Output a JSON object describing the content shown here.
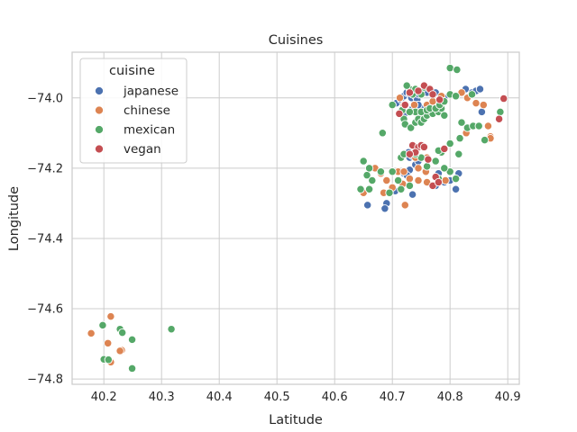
{
  "chart_data": {
    "type": "scatter",
    "title": "Cuisines",
    "xlabel": "Latitude",
    "ylabel": "Longitude",
    "xlim": [
      40.145,
      40.92
    ],
    "ylim": [
      -74.815,
      -73.87
    ],
    "xticks": [
      40.2,
      40.3,
      40.4,
      40.5,
      40.6,
      40.7,
      40.8,
      40.9
    ],
    "xtick_labels": [
      "40.2",
      "40.3",
      "40.4",
      "40.5",
      "40.6",
      "40.7",
      "40.8",
      "40.9"
    ],
    "yticks": [
      -74.0,
      -74.2,
      -74.4,
      -74.6,
      -74.8
    ],
    "ytick_labels": [
      "−74.0",
      "−74.2",
      "−74.4",
      "−74.6",
      "−74.8"
    ],
    "grid": true,
    "legend": {
      "title": "cuisine",
      "position": "top-left"
    },
    "series": [
      {
        "name": "japanese",
        "color": "#4c72b0",
        "points": [
          [
            40.707,
            -74.015
          ],
          [
            40.715,
            -74.005
          ],
          [
            40.72,
            -73.995
          ],
          [
            40.725,
            -73.985
          ],
          [
            40.73,
            -73.99
          ],
          [
            40.733,
            -74.0
          ],
          [
            40.736,
            -73.98
          ],
          [
            40.74,
            -73.995
          ],
          [
            40.743,
            -74.005
          ],
          [
            40.746,
            -73.99
          ],
          [
            40.75,
            -74.03
          ],
          [
            40.755,
            -73.975
          ],
          [
            40.76,
            -73.985
          ],
          [
            40.775,
            -73.985
          ],
          [
            40.79,
            -74.0
          ],
          [
            40.827,
            -73.975
          ],
          [
            40.838,
            -73.985
          ],
          [
            40.845,
            -73.98
          ],
          [
            40.852,
            -73.975
          ],
          [
            40.855,
            -74.04
          ],
          [
            40.72,
            -74.05
          ],
          [
            40.735,
            -74.03
          ],
          [
            40.745,
            -74.02
          ],
          [
            40.728,
            -74.155
          ],
          [
            40.73,
            -74.17
          ],
          [
            40.735,
            -74.165
          ],
          [
            40.74,
            -74.19
          ],
          [
            40.745,
            -74.18
          ],
          [
            40.73,
            -74.205
          ],
          [
            40.72,
            -74.215
          ],
          [
            40.725,
            -74.22
          ],
          [
            40.735,
            -74.275
          ],
          [
            40.705,
            -74.265
          ],
          [
            40.695,
            -74.27
          ],
          [
            40.69,
            -74.3
          ],
          [
            40.687,
            -74.315
          ],
          [
            40.657,
            -74.305
          ],
          [
            40.775,
            -74.25
          ],
          [
            40.8,
            -74.235
          ],
          [
            40.81,
            -74.26
          ],
          [
            40.815,
            -74.215
          ],
          [
            40.78,
            -74.215
          ],
          [
            40.79,
            -74.24
          ]
        ]
      },
      {
        "name": "chinese",
        "color": "#dd8452",
        "points": [
          [
            40.713,
            -74.0
          ],
          [
            40.72,
            -74.02
          ],
          [
            40.738,
            -74.02
          ],
          [
            40.745,
            -74.05
          ],
          [
            40.752,
            -74.04
          ],
          [
            40.76,
            -74.02
          ],
          [
            40.77,
            -74.01
          ],
          [
            40.785,
            -73.995
          ],
          [
            40.82,
            -73.985
          ],
          [
            40.83,
            -74.0
          ],
          [
            40.845,
            -74.015
          ],
          [
            40.858,
            -74.02
          ],
          [
            40.828,
            -74.1
          ],
          [
            40.848,
            -74.08
          ],
          [
            40.866,
            -74.08
          ],
          [
            40.87,
            -74.11
          ],
          [
            40.862,
            -74.12
          ],
          [
            40.87,
            -74.115
          ],
          [
            40.74,
            -74.17
          ],
          [
            40.745,
            -74.2
          ],
          [
            40.76,
            -74.17
          ],
          [
            40.79,
            -74.145
          ],
          [
            40.67,
            -74.2
          ],
          [
            40.68,
            -74.215
          ],
          [
            40.71,
            -74.21
          ],
          [
            40.72,
            -74.21
          ],
          [
            40.758,
            -74.21
          ],
          [
            40.792,
            -74.235
          ],
          [
            40.73,
            -74.23
          ],
          [
            40.718,
            -74.245
          ],
          [
            40.745,
            -74.235
          ],
          [
            40.69,
            -74.235
          ],
          [
            40.7,
            -74.255
          ],
          [
            40.685,
            -74.27
          ],
          [
            40.722,
            -74.305
          ],
          [
            40.65,
            -74.27
          ],
          [
            40.76,
            -74.24
          ],
          [
            40.178,
            -74.67
          ],
          [
            40.212,
            -74.622
          ],
          [
            40.207,
            -74.698
          ],
          [
            40.229,
            -74.722
          ],
          [
            40.231,
            -74.718
          ],
          [
            40.212,
            -74.752
          ],
          [
            40.228,
            -74.72
          ]
        ]
      },
      {
        "name": "mexican",
        "color": "#55a868",
        "points": [
          [
            40.717,
            -74.035
          ],
          [
            40.72,
            -74.06
          ],
          [
            40.722,
            -74.075
          ],
          [
            40.732,
            -74.085
          ],
          [
            40.74,
            -74.07
          ],
          [
            40.745,
            -74.06
          ],
          [
            40.75,
            -74.07
          ],
          [
            40.755,
            -74.06
          ],
          [
            40.76,
            -74.05
          ],
          [
            40.77,
            -74.045
          ],
          [
            40.78,
            -74.04
          ],
          [
            40.785,
            -74.03
          ],
          [
            40.79,
            -74.05
          ],
          [
            40.74,
            -74.04
          ],
          [
            40.75,
            -74.04
          ],
          [
            40.73,
            -74.04
          ],
          [
            40.76,
            -74.035
          ],
          [
            40.765,
            -74.03
          ],
          [
            40.775,
            -74.03
          ],
          [
            40.782,
            -74.02
          ],
          [
            40.79,
            -74.01
          ],
          [
            40.8,
            -73.99
          ],
          [
            40.81,
            -73.995
          ],
          [
            40.8,
            -73.915
          ],
          [
            40.812,
            -73.92
          ],
          [
            40.838,
            -73.99
          ],
          [
            40.82,
            -74.07
          ],
          [
            40.83,
            -74.085
          ],
          [
            40.84,
            -74.08
          ],
          [
            40.85,
            -74.08
          ],
          [
            40.86,
            -74.12
          ],
          [
            40.887,
            -74.04
          ],
          [
            40.817,
            -74.115
          ],
          [
            40.8,
            -74.13
          ],
          [
            40.785,
            -74.155
          ],
          [
            40.683,
            -74.1
          ],
          [
            40.75,
            -73.99
          ],
          [
            40.735,
            -73.99
          ],
          [
            40.73,
            -73.975
          ],
          [
            40.74,
            -73.975
          ],
          [
            40.755,
            -73.97
          ],
          [
            40.725,
            -73.965
          ],
          [
            40.7,
            -74.02
          ],
          [
            40.76,
            -74.195
          ],
          [
            40.775,
            -74.18
          ],
          [
            40.78,
            -74.15
          ],
          [
            40.75,
            -74.17
          ],
          [
            40.74,
            -74.16
          ],
          [
            40.815,
            -74.16
          ],
          [
            40.8,
            -74.21
          ],
          [
            40.81,
            -74.23
          ],
          [
            40.79,
            -74.2
          ],
          [
            40.78,
            -74.23
          ],
          [
            40.65,
            -74.18
          ],
          [
            40.656,
            -74.22
          ],
          [
            40.66,
            -74.2
          ],
          [
            40.665,
            -74.235
          ],
          [
            40.66,
            -74.26
          ],
          [
            40.645,
            -74.26
          ],
          [
            40.68,
            -74.21
          ],
          [
            40.7,
            -74.21
          ],
          [
            40.715,
            -74.17
          ],
          [
            40.72,
            -74.16
          ],
          [
            40.73,
            -74.25
          ],
          [
            40.715,
            -74.26
          ],
          [
            40.71,
            -74.235
          ],
          [
            40.695,
            -74.27
          ],
          [
            40.198,
            -74.647
          ],
          [
            40.228,
            -74.658
          ],
          [
            40.232,
            -74.668
          ],
          [
            40.249,
            -74.688
          ],
          [
            40.317,
            -74.658
          ],
          [
            40.2,
            -74.744
          ],
          [
            40.208,
            -74.745
          ],
          [
            40.249,
            -74.77
          ]
        ]
      },
      {
        "name": "vegan",
        "color": "#c44e52",
        "points": [
          [
            40.712,
            -74.045
          ],
          [
            40.722,
            -74.02
          ],
          [
            40.73,
            -73.985
          ],
          [
            40.745,
            -73.98
          ],
          [
            40.755,
            -73.965
          ],
          [
            40.765,
            -73.975
          ],
          [
            40.77,
            -73.99
          ],
          [
            40.782,
            -74.005
          ],
          [
            40.893,
            -74.002
          ],
          [
            40.885,
            -74.06
          ],
          [
            40.735,
            -74.135
          ],
          [
            40.745,
            -74.14
          ],
          [
            40.75,
            -74.135
          ],
          [
            40.755,
            -74.14
          ],
          [
            40.79,
            -74.145
          ],
          [
            40.762,
            -74.175
          ],
          [
            40.74,
            -74.155
          ],
          [
            40.775,
            -74.225
          ],
          [
            40.77,
            -74.25
          ],
          [
            40.78,
            -74.24
          ],
          [
            40.73,
            -74.16
          ]
        ]
      }
    ]
  }
}
